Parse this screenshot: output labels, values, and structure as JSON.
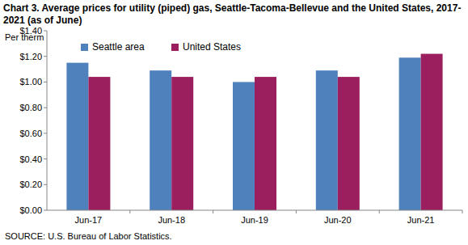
{
  "chart_data": {
    "type": "bar",
    "title": "Chart 3. Average prices for utility (piped) gas, Seattle-Tacoma-Bellevue and the United States, 2017-2021  (as of June)",
    "y_label": "Per therm",
    "source": "SOURCE: U.S. Bureau of Labor Statistics.",
    "categories": [
      "Jun-17",
      "Jun-18",
      "Jun-19",
      "Jun-20",
      "Jun-21"
    ],
    "series": [
      {
        "name": "Seattle area",
        "color": "#4f81bd",
        "values": [
          1.15,
          1.09,
          1.0,
          1.09,
          1.19
        ]
      },
      {
        "name": "United States",
        "color": "#9b1f5e",
        "values": [
          1.04,
          1.04,
          1.04,
          1.04,
          1.22
        ]
      }
    ],
    "ylim": [
      0,
      1.4
    ],
    "yticks": [
      {
        "value": 0,
        "label": "$0.00"
      },
      {
        "value": 0.2,
        "label": "$0.20"
      },
      {
        "value": 0.4,
        "label": "$0.40"
      },
      {
        "value": 0.6,
        "label": "$0.60"
      },
      {
        "value": 0.8,
        "label": "$0.80"
      },
      {
        "value": 1.0,
        "label": "$1.00"
      },
      {
        "value": 1.2,
        "label": "$1.20"
      },
      {
        "value": 1.4,
        "label": "$1.40"
      }
    ],
    "grid": false,
    "legend": "top-left"
  }
}
